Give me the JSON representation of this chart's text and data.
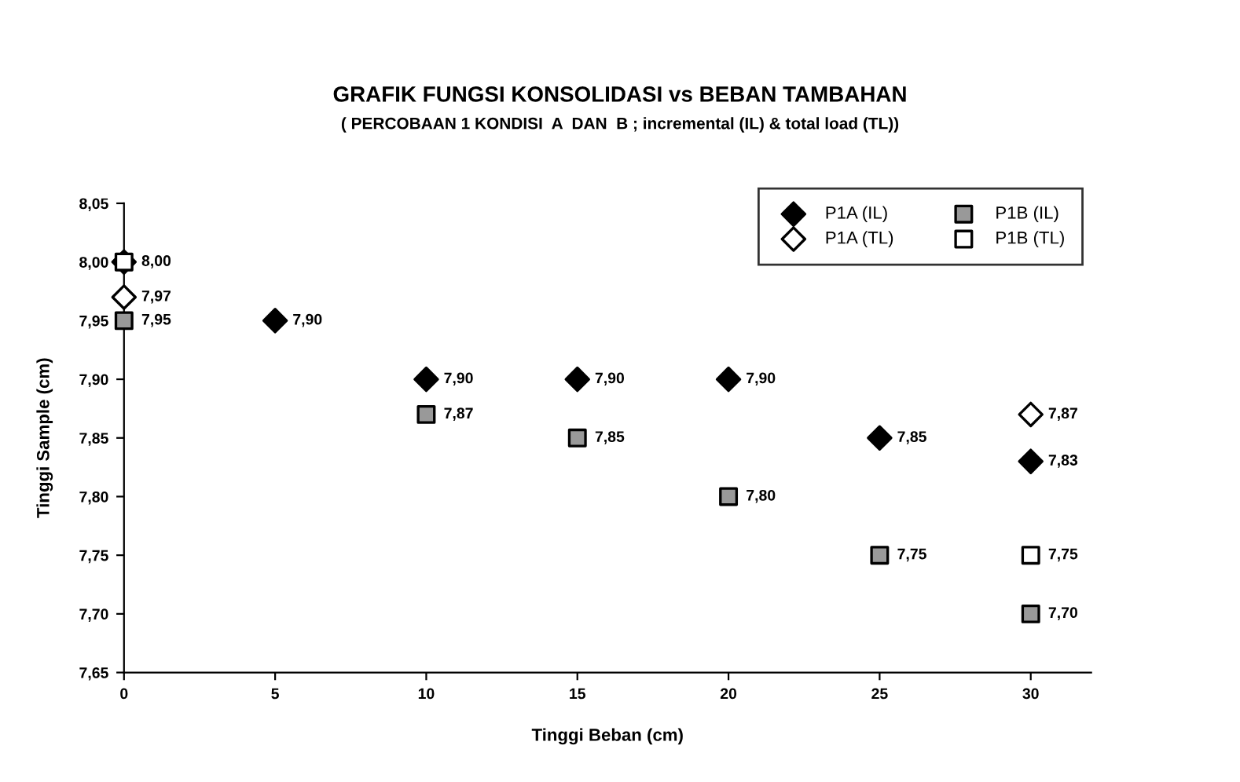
{
  "chart_data": {
    "type": "scatter",
    "title": "GRAFIK FUNGSI KONSOLIDASI vs BEBAN TAMBAHAN",
    "subtitle": "( PERCOBAAN 1 KONDISI  A  DAN  B ; incremental (IL) & total load (TL))",
    "xlabel": "Tinggi Beban (cm)",
    "ylabel": "Tinggi Sample (cm)",
    "xlim": [
      0,
      32
    ],
    "xticks": [
      0,
      5,
      10,
      15,
      20,
      25,
      30
    ],
    "ylim": [
      7.65,
      8.05
    ],
    "yticks": [
      {
        "value": 7.65,
        "label": "7,65"
      },
      {
        "value": 7.7,
        "label": "7,70"
      },
      {
        "value": 7.75,
        "label": "7,75"
      },
      {
        "value": 7.8,
        "label": "7,80"
      },
      {
        "value": 7.85,
        "label": "7,85"
      },
      {
        "value": 7.9,
        "label": "7,90"
      },
      {
        "value": 7.95,
        "label": "7,95"
      },
      {
        "value": 8.0,
        "label": "8,00"
      },
      {
        "value": 8.05,
        "label": "8,05"
      }
    ],
    "grid": false,
    "legend": "top right",
    "annotations": [
      {
        "text": "7,90",
        "x": 5,
        "y": 7.95
      }
    ],
    "series": [
      {
        "name": "P1A (IL)",
        "color": "#000000",
        "marker": "diamond",
        "x": [
          0,
          5,
          10,
          15,
          20,
          25,
          30
        ],
        "values": [
          8.0,
          7.95,
          7.9,
          7.9,
          7.9,
          7.85,
          7.83
        ],
        "value_labels": [
          "8,00",
          null,
          "7,90",
          "7,90",
          "7,90",
          "7,85",
          "7,83"
        ]
      },
      {
        "name": "P1A (TL)",
        "color": "#ffffff",
        "marker": "diamond",
        "x": [
          0,
          30
        ],
        "values": [
          7.97,
          7.87
        ],
        "value_labels": [
          "7,97",
          "7,87"
        ]
      },
      {
        "name": "P1B (IL)",
        "color": "#999999",
        "marker": "square",
        "x": [
          0,
          10,
          15,
          20,
          25,
          30
        ],
        "values": [
          7.95,
          7.87,
          7.85,
          7.8,
          7.75,
          7.7
        ],
        "value_labels": [
          "7,95",
          "7,87",
          "7,85",
          "7,80",
          "7,75",
          "7,70"
        ]
      },
      {
        "name": "P1B (TL)",
        "color": "#ffffff",
        "marker": "square",
        "x": [
          0,
          30
        ],
        "values": [
          8.0,
          7.75
        ],
        "value_labels": [
          null,
          "7,75"
        ]
      }
    ]
  }
}
